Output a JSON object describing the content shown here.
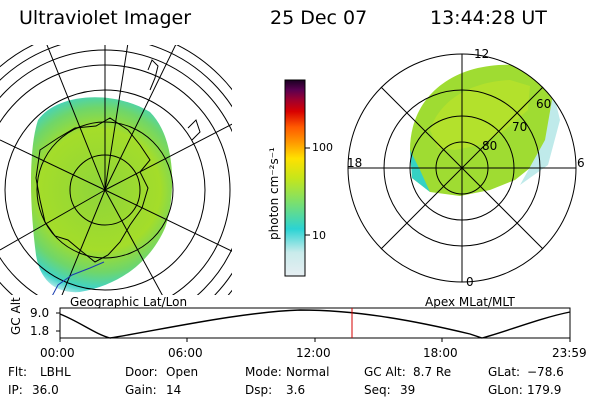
{
  "header": {
    "instrument": "Ultraviolet Imager",
    "date": "25 Dec 07",
    "time": "13:44:28 UT"
  },
  "colorbar": {
    "unit_label": "photon cm⁻²s⁻¹",
    "ticks": [
      "100",
      "10"
    ],
    "scale": "log",
    "colors": [
      "#e6eef2",
      "#c9ebeb",
      "#2bd3d3",
      "#7ee06a",
      "#c6e61a",
      "#ffe100",
      "#ff9a00",
      "#ff5a00",
      "#d80000",
      "#9c0030",
      "#5a0050",
      "#1a0022"
    ]
  },
  "left_map": {
    "projection_label": "Geographic Lat/Lon"
  },
  "right_map": {
    "projection_label": "Apex MLat/MLT",
    "mlt_labels": {
      "top": "12",
      "bottom": "0",
      "left": "18",
      "right": "6"
    },
    "lat_labels": [
      "60",
      "70",
      "80"
    ]
  },
  "altitude_plot": {
    "y_axis_label": "GC Alt",
    "y_ticks": [
      "9.0",
      "1.8"
    ],
    "x_ticks": [
      "00:00",
      "06:00",
      "12:00",
      "18:00",
      "23:59"
    ],
    "marker_time": "13:44",
    "marker_color": "#d40000"
  },
  "info": {
    "row1": [
      {
        "label": "Flt:",
        "value": "LBHL"
      },
      {
        "label": "Door:",
        "value": "Open"
      },
      {
        "label": "Mode:",
        "value": "Normal"
      },
      {
        "label": "GC Alt:",
        "value": "8.7 Re"
      },
      {
        "label": "GLat:",
        "value": "−78.6"
      }
    ],
    "row2": [
      {
        "label": "IP:",
        "value": "36.0"
      },
      {
        "label": "Gain:",
        "value": "14"
      },
      {
        "label": "Dsp:",
        "value": "3.6"
      },
      {
        "label": "Seq:",
        "value": "39"
      },
      {
        "label": "GLon:",
        "value": "179.9"
      }
    ]
  }
}
